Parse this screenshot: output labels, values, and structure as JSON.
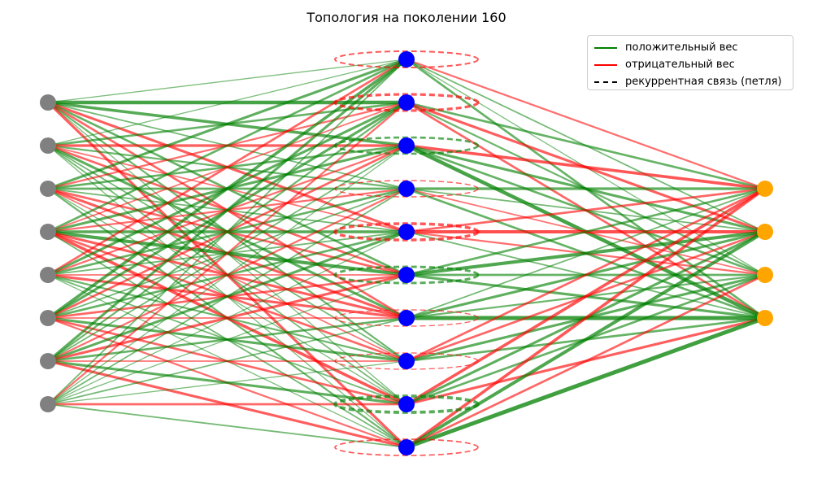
{
  "title": "Топология на поколении 160",
  "legend": {
    "items": [
      {
        "label": "положительный вес",
        "color": "#008000",
        "style": "solid"
      },
      {
        "label": "отрицательный вес",
        "color": "#ff0000",
        "style": "solid"
      },
      {
        "label": "рекуррентная связь (петля)",
        "color": "#000000",
        "style": "dashed"
      }
    ],
    "placement": "top-right"
  },
  "colors": {
    "positive": "#008000",
    "negative": "#ff0000",
    "input_node": "#808080",
    "hidden_node": "#0000ff",
    "output_node": "#ffa500"
  },
  "network": {
    "layers": [
      {
        "name": "input",
        "count": 8
      },
      {
        "name": "hidden",
        "count": 10
      },
      {
        "name": "output",
        "count": 4
      }
    ],
    "recurrent": [
      {
        "node": 0,
        "sign": "negative",
        "weight": 0.4
      },
      {
        "node": 1,
        "sign": "negative",
        "weight": 0.8
      },
      {
        "node": 2,
        "sign": "positive",
        "weight": 0.6
      },
      {
        "node": 3,
        "sign": "negative",
        "weight": 0.2
      },
      {
        "node": 4,
        "sign": "negative",
        "weight": 0.9
      },
      {
        "node": 5,
        "sign": "positive",
        "weight": 0.7
      },
      {
        "node": 6,
        "sign": "negative",
        "weight": 0.15
      },
      {
        "node": 7,
        "sign": "negative",
        "weight": 0.15
      },
      {
        "node": 8,
        "sign": "positive",
        "weight": 1.0
      },
      {
        "node": 9,
        "sign": "negative",
        "weight": 0.3
      }
    ],
    "ih_weights": [
      [
        0.2,
        0.9,
        0.7,
        0.3,
        -0.6,
        0.5,
        -0.5,
        0.4,
        0.2,
        -0.6
      ],
      [
        0.2,
        0.5,
        -0.6,
        0.4,
        -0.3,
        -0.5,
        0.6,
        0.3,
        0.3,
        0.2
      ],
      [
        0.6,
        -0.4,
        0.5,
        0.5,
        0.3,
        -0.5,
        -0.6,
        -0.3,
        0.2,
        0.4
      ],
      [
        0.5,
        -0.3,
        0.6,
        -0.4,
        0.7,
        0.8,
        -0.6,
        -0.5,
        -0.7,
        0.3
      ],
      [
        -0.5,
        0.6,
        -0.4,
        0.5,
        0.3,
        -0.3,
        -0.6,
        0.4,
        0.3,
        0.2
      ],
      [
        0.7,
        0.6,
        -0.5,
        0.3,
        0.5,
        -0.5,
        -0.3,
        0.6,
        -0.5,
        -0.4
      ],
      [
        0.6,
        0.4,
        0.3,
        -0.4,
        0.6,
        -0.6,
        0.5,
        -0.3,
        0.6,
        -0.6
      ],
      [
        0.3,
        -0.4,
        0.2,
        0.3,
        0.2,
        0.2,
        0.3,
        0.2,
        -0.5,
        0.3
      ]
    ],
    "ho_weights": [
      [
        -0.4,
        0.3,
        0.2,
        0.5
      ],
      [
        0.5,
        -0.6,
        0.4,
        -0.5
      ],
      [
        -0.7,
        0.6,
        0.5,
        0.9
      ],
      [
        0.6,
        0.3,
        -0.3,
        0.5
      ],
      [
        -0.5,
        -0.8,
        -0.4,
        0.3
      ],
      [
        0.5,
        0.8,
        0.5,
        0.6
      ],
      [
        0.3,
        0.6,
        0.4,
        1.0
      ],
      [
        -0.5,
        -0.5,
        0.6,
        0.5
      ],
      [
        -0.7,
        0.6,
        0.5,
        -0.6
      ],
      [
        -0.7,
        0.8,
        -0.5,
        1.0
      ]
    ]
  }
}
